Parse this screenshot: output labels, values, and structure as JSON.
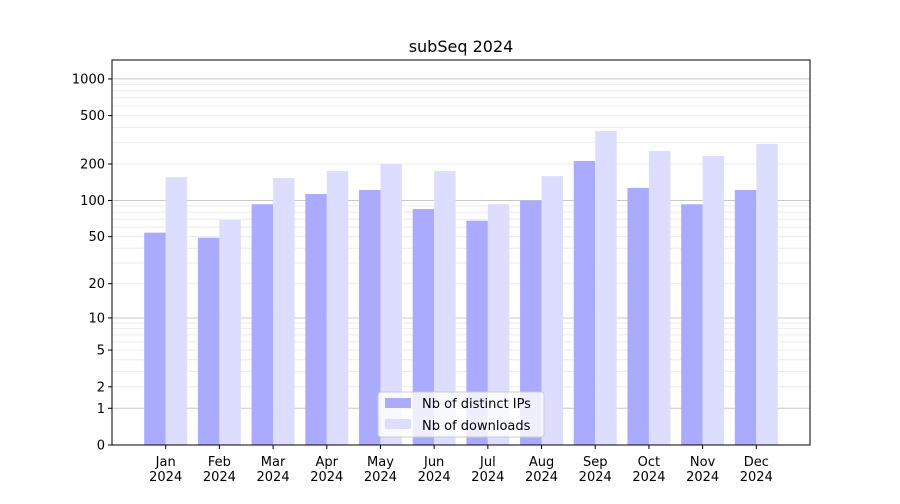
{
  "chart_data": {
    "type": "bar",
    "title": "subSeq 2024",
    "xlabel": "",
    "ylabel": "",
    "yscale": "log10(1+y)",
    "ylim": [
      0,
      1430
    ],
    "yticks": [
      0,
      1,
      2,
      5,
      10,
      20,
      50,
      100,
      200,
      500,
      1000
    ],
    "grid": true,
    "legend_placement": "lower-center",
    "categories": [
      "Jan\n2024",
      "Feb\n2024",
      "Mar\n2024",
      "Apr\n2024",
      "May\n2024",
      "Jun\n2024",
      "Jul\n2024",
      "Aug\n2024",
      "Sep\n2024",
      "Oct\n2024",
      "Nov\n2024",
      "Dec\n2024"
    ],
    "series": [
      {
        "name": "Nb of distinct IPs",
        "color": "#aaaaff",
        "values": [
          54,
          49,
          93,
          113,
          122,
          85,
          68,
          100,
          212,
          127,
          93,
          122
        ]
      },
      {
        "name": "Nb of downloads",
        "color": "#ddddff",
        "values": [
          156,
          69,
          153,
          175,
          200,
          175,
          93,
          159,
          374,
          256,
          233,
          292
        ]
      }
    ]
  }
}
